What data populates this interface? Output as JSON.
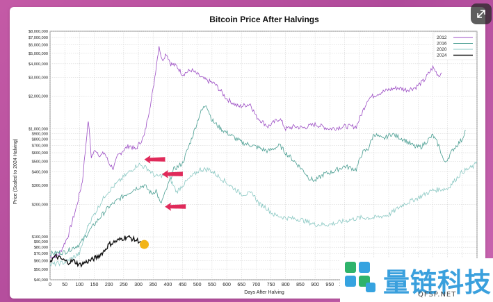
{
  "chart_data": {
    "type": "line",
    "title": "Bitcoin Price After Halvings",
    "xlabel": "Days After Halving",
    "ylabel": "Price (Scaled to 2024 Halving)",
    "xlim": [
      0,
      1450
    ],
    "ylim": [
      40000,
      8000000
    ],
    "yscale": "log",
    "grid": true,
    "legend_position": "top-right",
    "x_ticks": [
      0,
      50,
      100,
      150,
      200,
      250,
      300,
      350,
      400,
      450,
      500,
      550,
      600,
      650,
      700,
      750,
      800,
      850,
      900,
      950,
      1000,
      1050,
      1100,
      1150,
      1200,
      1250,
      1300,
      1350,
      1400,
      1450
    ],
    "y_tick_labels": [
      {
        "v": 8000000,
        "label": "$8,000,000"
      },
      {
        "v": 7000000,
        "label": "$7,000,000"
      },
      {
        "v": 6000000,
        "label": "$6,000,000"
      },
      {
        "v": 5000000,
        "label": "$5,000,000"
      },
      {
        "v": 4000000,
        "label": "$4,000,000"
      },
      {
        "v": 3000000,
        "label": "$3,000,000"
      },
      {
        "v": 2000000,
        "label": "$2,000,000"
      },
      {
        "v": 1000000,
        "label": "$1,000,000"
      },
      {
        "v": 900000,
        "label": "$900,000"
      },
      {
        "v": 800000,
        "label": "$800,000"
      },
      {
        "v": 700000,
        "label": "$700,000"
      },
      {
        "v": 600000,
        "label": "$600,000"
      },
      {
        "v": 500000,
        "label": "$500,000"
      },
      {
        "v": 400000,
        "label": "$400,000"
      },
      {
        "v": 300000,
        "label": "$300,000"
      },
      {
        "v": 200000,
        "label": "$200,000"
      },
      {
        "v": 100000,
        "label": "$100,000"
      },
      {
        "v": 90000,
        "label": "$90,000"
      },
      {
        "v": 80000,
        "label": "$80,000"
      },
      {
        "v": 70000,
        "label": "$70,000"
      },
      {
        "v": 60000,
        "label": "$60,000"
      },
      {
        "v": 50000,
        "label": "$50,000"
      },
      {
        "v": 40000,
        "label": "$40,000"
      }
    ],
    "series": [
      {
        "name": "2012",
        "color": "#9c4dc4",
        "points": [
          [
            0,
            65000
          ],
          [
            30,
            68000
          ],
          [
            60,
            100000
          ],
          [
            90,
            190000
          ],
          [
            110,
            330000
          ],
          [
            125,
            900000
          ],
          [
            130,
            1200000
          ],
          [
            140,
            550000
          ],
          [
            155,
            640000
          ],
          [
            170,
            560000
          ],
          [
            185,
            600000
          ],
          [
            200,
            480000
          ],
          [
            215,
            430000
          ],
          [
            230,
            560000
          ],
          [
            250,
            640000
          ],
          [
            270,
            700000
          ],
          [
            290,
            640000
          ],
          [
            320,
            860000
          ],
          [
            350,
            2300000
          ],
          [
            370,
            5900000
          ],
          [
            380,
            4300000
          ],
          [
            395,
            5000000
          ],
          [
            410,
            4000000
          ],
          [
            430,
            3800000
          ],
          [
            450,
            3200000
          ],
          [
            480,
            3500000
          ],
          [
            520,
            2900000
          ],
          [
            560,
            2600000
          ],
          [
            600,
            1900000
          ],
          [
            640,
            1600000
          ],
          [
            680,
            1700000
          ],
          [
            700,
            1300000
          ],
          [
            740,
            1050000
          ],
          [
            780,
            1250000
          ],
          [
            800,
            1000000
          ],
          [
            830,
            1050000
          ],
          [
            860,
            1020000
          ],
          [
            900,
            1100000
          ],
          [
            950,
            1000000
          ],
          [
            1000,
            1050000
          ],
          [
            1040,
            1050000
          ],
          [
            1080,
            1900000
          ],
          [
            1110,
            2100000
          ],
          [
            1150,
            2300000
          ],
          [
            1180,
            2400000
          ],
          [
            1210,
            2300000
          ],
          [
            1240,
            2400000
          ],
          [
            1270,
            2800000
          ],
          [
            1300,
            3700000
          ],
          [
            1320,
            3100000
          ],
          [
            1330,
            3300000
          ]
        ]
      },
      {
        "name": "2016",
        "color": "#4a9e92",
        "points": [
          [
            0,
            70000
          ],
          [
            50,
            72000
          ],
          [
            100,
            85000
          ],
          [
            150,
            130000
          ],
          [
            200,
            190000
          ],
          [
            250,
            240000
          ],
          [
            290,
            280000
          ],
          [
            320,
            300000
          ],
          [
            345,
            250000
          ],
          [
            360,
            270000
          ],
          [
            375,
            200000
          ],
          [
            390,
            250000
          ],
          [
            420,
            420000
          ],
          [
            450,
            480000
          ],
          [
            480,
            800000
          ],
          [
            510,
            1400000
          ],
          [
            530,
            1700000
          ],
          [
            550,
            1200000
          ],
          [
            580,
            1000000
          ],
          [
            620,
            850000
          ],
          [
            650,
            750000
          ],
          [
            700,
            680000
          ],
          [
            740,
            620000
          ],
          [
            780,
            700000
          ],
          [
            800,
            600000
          ],
          [
            830,
            500000
          ],
          [
            860,
            410000
          ],
          [
            880,
            350000
          ],
          [
            900,
            330000
          ],
          [
            930,
            380000
          ],
          [
            960,
            400000
          ],
          [
            1000,
            450000
          ],
          [
            1040,
            420000
          ],
          [
            1060,
            600000
          ],
          [
            1080,
            650000
          ],
          [
            1100,
            900000
          ],
          [
            1130,
            800000
          ],
          [
            1160,
            900000
          ],
          [
            1200,
            800000
          ],
          [
            1240,
            680000
          ],
          [
            1260,
            680000
          ],
          [
            1300,
            870000
          ],
          [
            1320,
            700000
          ],
          [
            1340,
            480000
          ],
          [
            1370,
            650000
          ],
          [
            1400,
            800000
          ],
          [
            1410,
            980000
          ]
        ]
      },
      {
        "name": "2020",
        "color": "#8cc9c4",
        "points": [
          [
            0,
            55000
          ],
          [
            50,
            58000
          ],
          [
            100,
            70000
          ],
          [
            130,
            130000
          ],
          [
            160,
            180000
          ],
          [
            190,
            250000
          ],
          [
            220,
            300000
          ],
          [
            260,
            380000
          ],
          [
            300,
            470000
          ],
          [
            330,
            430000
          ],
          [
            360,
            360000
          ],
          [
            400,
            380000
          ],
          [
            430,
            260000
          ],
          [
            450,
            300000
          ],
          [
            480,
            360000
          ],
          [
            510,
            420000
          ],
          [
            540,
            420000
          ],
          [
            580,
            350000
          ],
          [
            610,
            300000
          ],
          [
            650,
            250000
          ],
          [
            690,
            250000
          ],
          [
            710,
            200000
          ],
          [
            730,
            190000
          ],
          [
            760,
            160000
          ],
          [
            800,
            150000
          ],
          [
            850,
            145000
          ],
          [
            900,
            130000
          ],
          [
            950,
            130000
          ],
          [
            1000,
            140000
          ],
          [
            1050,
            150000
          ],
          [
            1100,
            150000
          ],
          [
            1150,
            160000
          ],
          [
            1200,
            200000
          ],
          [
            1250,
            230000
          ],
          [
            1300,
            270000
          ],
          [
            1350,
            280000
          ],
          [
            1400,
            400000
          ],
          [
            1440,
            450000
          ],
          [
            1450,
            500000
          ]
        ]
      },
      {
        "name": "2024",
        "color": "#111111",
        "points": [
          [
            0,
            60000
          ],
          [
            20,
            66000
          ],
          [
            40,
            62000
          ],
          [
            60,
            58000
          ],
          [
            80,
            60000
          ],
          [
            100,
            55000
          ],
          [
            120,
            58000
          ],
          [
            140,
            61000
          ],
          [
            160,
            65000
          ],
          [
            180,
            72000
          ],
          [
            200,
            85000
          ],
          [
            220,
            90000
          ],
          [
            240,
            95000
          ],
          [
            260,
            100000
          ],
          [
            275,
            97000
          ],
          [
            290,
            93000
          ],
          [
            300,
            92000
          ],
          [
            310,
            90000
          ]
        ]
      }
    ],
    "annotations": [
      {
        "type": "arrow",
        "x": 320,
        "y": 520000,
        "color": "#e02a5a"
      },
      {
        "type": "arrow",
        "x": 380,
        "y": 380000,
        "color": "#e02a5a"
      },
      {
        "type": "arrow",
        "x": 390,
        "y": 190000,
        "color": "#e02a5a"
      },
      {
        "type": "dot",
        "x": 320,
        "y": 85000,
        "color": "#f2b418"
      }
    ]
  },
  "watermark": {
    "title": "量链科技",
    "subtitle": "QFSP.NET"
  }
}
